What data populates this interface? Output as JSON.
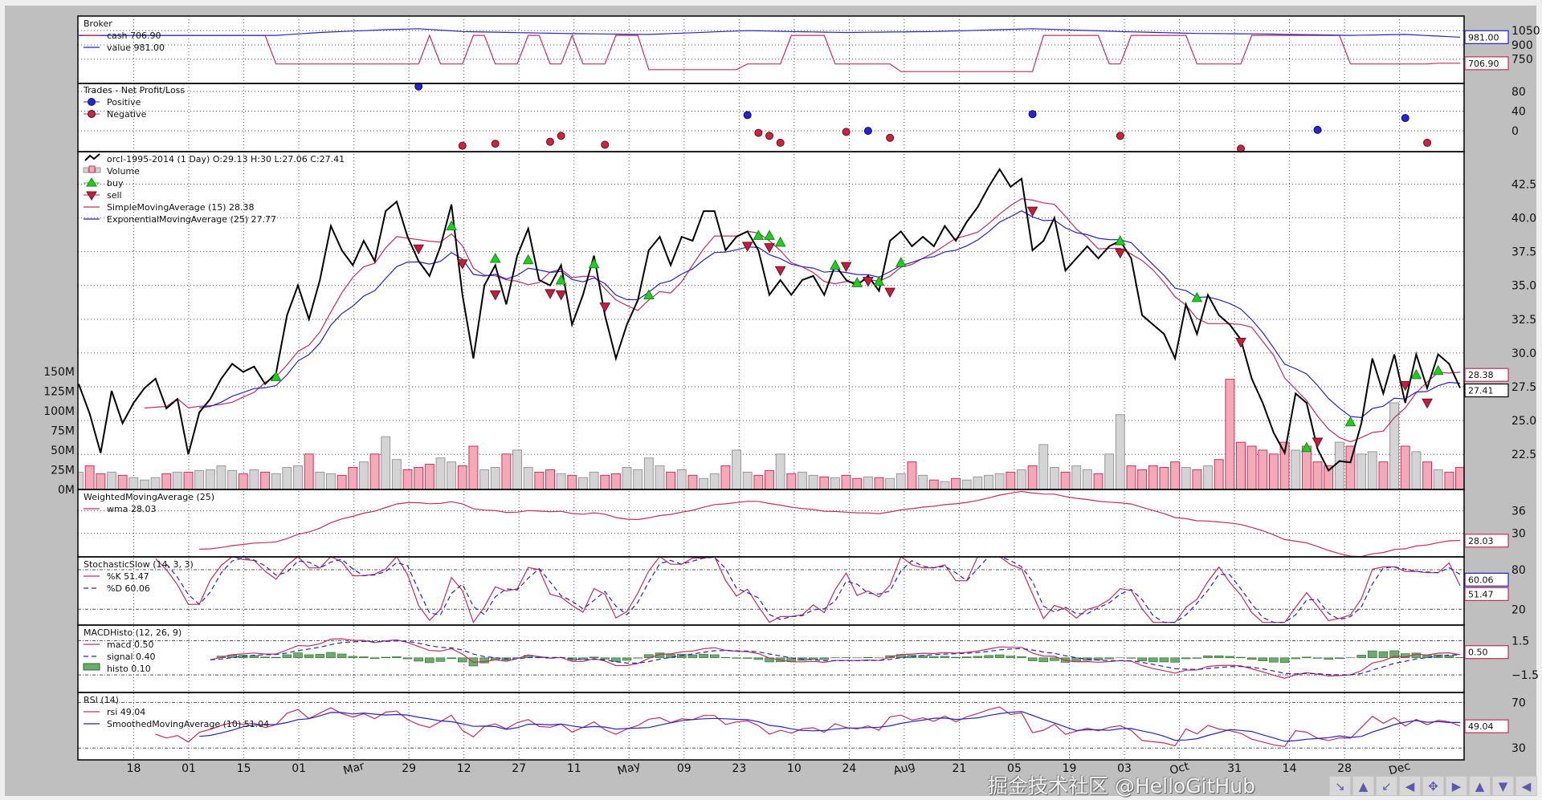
{
  "chart_data": {
    "type": "line",
    "x_tick_labels": [
      "18",
      "01",
      "15",
      "01",
      "Mar",
      "29",
      "12",
      "27",
      "11",
      "May",
      "09",
      "23",
      "10",
      "24",
      "Aug",
      "21",
      "05",
      "19",
      "03",
      "Oct",
      "31",
      "14",
      "28",
      "Dec"
    ],
    "rotated_tick_labels": [
      "Mar",
      "May",
      "Aug",
      "Oct",
      "Dec"
    ],
    "grid": true,
    "colors": {
      "price": "#000000",
      "sma": "#c0305a",
      "ema": "#2424c8",
      "cash": "#c0305a",
      "value": "#2424c8",
      "buy": "#22cc22",
      "sell": "#c0203f",
      "positive": "#2323e0",
      "negative": "#cc2244",
      "histo": "#6daa6d",
      "volume_up": "#d4d4d4",
      "volume_down": "#f2a9b8"
    },
    "broker": {
      "title": "Broker",
      "legend": [
        "cash 706.90",
        "value 981.00"
      ],
      "ylim": [
        495,
        1203
      ],
      "y_ticks": [
        "750",
        "900",
        "1050"
      ],
      "y_tick_values": [
        750,
        900,
        1050
      ],
      "cash_high": 1000,
      "cash_low_segments": [
        [
          18,
          31,
          700
        ],
        [
          33,
          35,
          700
        ],
        [
          38,
          40,
          700
        ],
        [
          43,
          44,
          700
        ],
        [
          46,
          48,
          700
        ],
        [
          52,
          60,
          640
        ],
        [
          61,
          62,
          700
        ],
        [
          62,
          63,
          700
        ],
        [
          63,
          64,
          700
        ],
        [
          69,
          70,
          700
        ],
        [
          71,
          71,
          700
        ],
        [
          72,
          72,
          700
        ],
        [
          73,
          74,
          700
        ],
        [
          75,
          87,
          620
        ],
        [
          94,
          95,
          700
        ],
        [
          102,
          106,
          700
        ],
        [
          116,
          121,
          700
        ],
        [
          122,
          123,
          700
        ],
        [
          124,
          126,
          707
        ]
      ],
      "value_points": [
        [
          0,
          1000
        ],
        [
          18,
          1000
        ],
        [
          22,
          1030
        ],
        [
          28,
          1060
        ],
        [
          31,
          1070
        ],
        [
          35,
          1040
        ],
        [
          44,
          1020
        ],
        [
          52,
          1010
        ],
        [
          61,
          1050
        ],
        [
          65,
          1040
        ],
        [
          70,
          1030
        ],
        [
          78,
          1040
        ],
        [
          87,
          1070
        ],
        [
          95,
          1040
        ],
        [
          102,
          1020
        ],
        [
          108,
          1015
        ],
        [
          116,
          1000
        ],
        [
          121,
          1010
        ],
        [
          126,
          981
        ]
      ],
      "last_value_labels": {
        "value": "981.00",
        "cash": "706.90"
      }
    },
    "trades": {
      "title": "Trades - Net Profit/Loss",
      "legend": [
        "Positive",
        "Negative"
      ],
      "ylim": [
        -42,
        96
      ],
      "y_ticks": [
        "0",
        "40",
        "80"
      ],
      "y_tick_values": [
        0,
        40,
        80
      ],
      "positive": [
        [
          31,
          90
        ],
        [
          61,
          32
        ],
        [
          72,
          0
        ],
        [
          87,
          34
        ],
        [
          113,
          2
        ],
        [
          121,
          26
        ]
      ],
      "negative": [
        [
          35,
          -30
        ],
        [
          38,
          -26
        ],
        [
          43,
          -22
        ],
        [
          44,
          -10
        ],
        [
          48,
          -28
        ],
        [
          62,
          -4
        ],
        [
          63,
          -10
        ],
        [
          64,
          -24
        ],
        [
          70,
          -2
        ],
        [
          74,
          -14
        ],
        [
          95,
          -10
        ],
        [
          106,
          -36
        ],
        [
          123,
          -24
        ]
      ]
    },
    "price": {
      "legend": [
        "orcl-1995-2014 (1 Day) O:29.13 H:30 L:27.06 C:27.41",
        "Volume",
        "buy",
        "sell",
        "SimpleMovingAverage (15) 28.38",
        "ExponentialMovingAverage (25) 27.77"
      ],
      "ylim": [
        19.9,
        44.9
      ],
      "y_ticks": [
        "22.5",
        "25.0",
        "27.5",
        "30.0",
        "32.5",
        "35.0",
        "37.5",
        "40.0",
        "42.5"
      ],
      "y_tick_values": [
        22.5,
        25,
        27.5,
        30,
        32.5,
        35,
        37.5,
        40,
        42.5
      ],
      "close": [
        27.7,
        25.5,
        22.6,
        27.2,
        24.8,
        26.3,
        27.4,
        28.1,
        25.9,
        26.6,
        22.5,
        25.6,
        26.6,
        28.1,
        29.2,
        28.6,
        29.0,
        27.7,
        28.5,
        32.8,
        35.0,
        32.5,
        35.4,
        39.4,
        37.6,
        36.5,
        38.3,
        36.8,
        40.5,
        41.2,
        38.6,
        36.8,
        35.7,
        37.9,
        41.0,
        34.3,
        29.6,
        35.0,
        36.5,
        33.6,
        37.2,
        39.2,
        35.4,
        35.0,
        36.5,
        32.1,
        34.3,
        37.2,
        32.8,
        29.6,
        32.1,
        33.9,
        37.6,
        38.6,
        36.5,
        38.6,
        38.3,
        40.5,
        40.5,
        37.6,
        38.6,
        39.0,
        37.6,
        34.3,
        35.4,
        34.3,
        35.4,
        35.7,
        34.3,
        36.5,
        35.4,
        35.0,
        35.7,
        34.6,
        38.3,
        39.0,
        37.9,
        38.6,
        37.9,
        39.4,
        38.3,
        39.7,
        40.8,
        42.3,
        43.6,
        42.3,
        42.9,
        37.6,
        38.3,
        40.0,
        36.1,
        37.0,
        37.9,
        37.0,
        37.9,
        38.3,
        37.0,
        32.8,
        32.1,
        31.4,
        29.6,
        33.6,
        31.4,
        34.3,
        32.8,
        32.1,
        31.0,
        28.1,
        26.3,
        24.1,
        22.6,
        27.0,
        26.3,
        22.9,
        21.3,
        22.0,
        21.9,
        24.8,
        29.6,
        27.0,
        29.9,
        26.3,
        29.9,
        27.4,
        29.9,
        29.2,
        27.41
      ],
      "volume_millions": [
        22,
        30,
        20,
        22,
        18,
        15,
        12,
        15,
        20,
        22,
        22,
        24,
        25,
        30,
        24,
        20,
        25,
        22,
        20,
        28,
        30,
        45,
        22,
        20,
        18,
        28,
        35,
        45,
        67,
        38,
        25,
        28,
        32,
        40,
        35,
        30,
        55,
        25,
        28,
        45,
        50,
        28,
        22,
        25,
        20,
        18,
        15,
        22,
        18,
        20,
        28,
        25,
        40,
        30,
        22,
        25,
        18,
        14,
        20,
        30,
        50,
        22,
        18,
        24,
        45,
        20,
        22,
        18,
        16,
        15,
        18,
        14,
        16,
        15,
        14,
        20,
        35,
        18,
        12,
        10,
        14,
        12,
        16,
        18,
        20,
        22,
        25,
        30,
        57,
        28,
        22,
        30,
        25,
        20,
        45,
        95,
        30,
        25,
        30,
        28,
        35,
        28,
        25,
        30,
        38,
        140,
        60,
        55,
        50,
        45,
        60,
        50,
        55,
        35,
        30,
        60,
        55,
        45,
        48,
        35,
        110,
        55,
        48,
        35,
        25,
        22,
        28
      ],
      "volume_ylim": [
        0,
        429
      ],
      "volume_ticks": [
        "0M",
        "25M",
        "50M",
        "75M",
        "100M",
        "125M",
        "150M"
      ],
      "volume_tick_values": [
        0,
        25,
        50,
        75,
        100,
        125,
        150
      ],
      "buy": [
        [
          18,
          28.25
        ],
        [
          34,
          39.4
        ],
        [
          38,
          37.0
        ],
        [
          41,
          36.9
        ],
        [
          44,
          35.4
        ],
        [
          47,
          36.6
        ],
        [
          52,
          34.3
        ],
        [
          62,
          38.7
        ],
        [
          63,
          38.7
        ],
        [
          64,
          38.2
        ],
        [
          69,
          36.5
        ],
        [
          71,
          35.2
        ],
        [
          73,
          35.3
        ],
        [
          75,
          36.7
        ],
        [
          95,
          38.3
        ],
        [
          102,
          34.1
        ],
        [
          112,
          23.0
        ],
        [
          116,
          24.9
        ],
        [
          122,
          28.4
        ],
        [
          124,
          28.7
        ]
      ],
      "sell": [
        [
          31,
          37.7
        ],
        [
          35,
          36.6
        ],
        [
          38,
          34.3
        ],
        [
          43,
          34.4
        ],
        [
          44,
          34.3
        ],
        [
          48,
          33.4
        ],
        [
          61,
          37.9
        ],
        [
          63,
          37.8
        ],
        [
          64,
          36.1
        ],
        [
          70,
          36.4
        ],
        [
          72,
          35.3
        ],
        [
          74,
          34.5
        ],
        [
          87,
          40.5
        ],
        [
          95,
          37.4
        ],
        [
          106,
          30.8
        ],
        [
          113,
          23.4
        ],
        [
          121,
          27.6
        ],
        [
          123,
          26.3
        ]
      ],
      "last_value_labels": {
        "sma": "28.38",
        "close": "27.41"
      }
    },
    "wma": {
      "legend": [
        "WeightedMovingAverage (25)",
        "wma 28.03"
      ],
      "ylim": [
        23.7,
        41.7
      ],
      "y_ticks": [
        "30",
        "36"
      ],
      "y_tick_values": [
        30,
        36
      ],
      "last_value_label": "28.03"
    },
    "stoch": {
      "legend": [
        "StochasticSlow (14, 3, 3)",
        "%K 51.47",
        "%D 60.06"
      ],
      "ylim": [
        -4,
        99.5
      ],
      "y_ticks": [
        "20",
        "80"
      ],
      "y_tick_values": [
        20,
        80
      ],
      "last_value_labels": {
        "d": "60.06",
        "k": "51.47"
      }
    },
    "macd": {
      "legend": [
        "MACDHisto (12, 26, 9)",
        "macd 0.50",
        "signal 0.40",
        "histo 0.10"
      ],
      "ylim": [
        -3.04,
        2.87
      ],
      "y_ticks": [
        "−1.5",
        "1.5"
      ],
      "y_tick_values": [
        -1.5,
        1.5
      ],
      "last_value_label": "0.50"
    },
    "rsi": {
      "legend": [
        "RSI (14)",
        "rsi 49.04",
        "SmoothedMovingAverage (10) 51.04"
      ],
      "ylim": [
        19.6,
        78.7
      ],
      "y_ticks": [
        "30",
        "70"
      ],
      "y_tick_values": [
        30,
        70
      ],
      "last_value_label": "49.04"
    }
  },
  "watermark": "掘金技术社区 @HelloGitHub",
  "nav_toolbar": {
    "icons": [
      "arrow-up-left-icon",
      "arrow-up-icon",
      "arrow-up-right-icon",
      "arrow-left-icon",
      "move-icon",
      "arrow-right-icon",
      "arrow-down-left-icon",
      "arrow-down-icon",
      "arrow-down-right-icon"
    ],
    "glyphs": [
      "↘",
      "▲",
      "↙",
      "◀",
      "✥",
      "▶",
      "▲",
      "▼",
      "◀"
    ]
  }
}
